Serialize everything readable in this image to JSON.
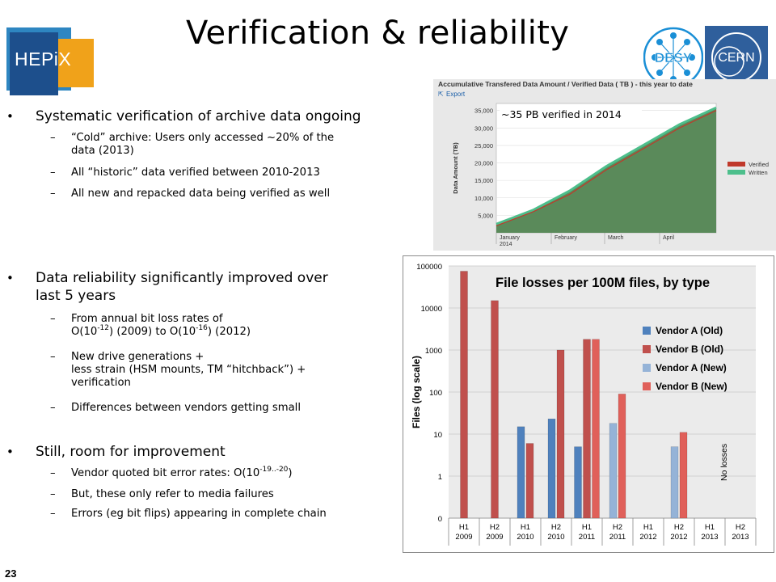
{
  "slide": {
    "title": "Verification & reliability",
    "page_number": "23",
    "logos": {
      "hepix": "HEPiX",
      "desy": "DESY",
      "cern": "CERN"
    }
  },
  "bullets": [
    {
      "text": "Systematic verification of archive data ongoing",
      "subs": [
        "“Cold” archive: Users only accessed ~20% of the",
        "data (2013)",
        "All “historic” data verified between 2010-2013",
        "All new and repacked data being verified as well"
      ]
    },
    {
      "text_line1": "Data reliability significantly improved over",
      "text_line2": "last 5 years",
      "subs": {
        "a1": "From annual bit loss rates of",
        "a2_pre": "O(10",
        "a2_sup1": "-12",
        "a2_mid": ") (2009) to O(10",
        "a2_sup2": "-16",
        "a2_post": ") (2012)",
        "b1": "New drive generations +",
        "b2": "less strain (HSM mounts, TM “hitchback”) +",
        "b3": "verification",
        "c": "Differences between vendors getting small"
      }
    },
    {
      "text": "Still, room for improvement",
      "subs": {
        "a_pre": "Vendor quoted bit error rates: O(10",
        "a_sup": "-19..-20",
        "a_post": ")",
        "b": "But, these only refer to media failures",
        "c": "Errors (eg bit flips) appearing in complete chain"
      }
    }
  ],
  "chart_data": [
    {
      "type": "area",
      "title": "Accumulative Transfered Data Amount / Verified Data ( TB ) - this year to date",
      "export_label": "Export",
      "annotation": "~35 PB verified in 2014",
      "ylabel": "Data Amount (TB)",
      "ylim": [
        0,
        37000
      ],
      "yticks": [
        "5,000",
        "10,000",
        "15,000",
        "20,000",
        "25,000",
        "30,000",
        "35,000"
      ],
      "ytick_values": [
        5000,
        10000,
        15000,
        20000,
        25000,
        30000,
        35000
      ],
      "x_labels": [
        [
          "January",
          "2014"
        ],
        [
          "February"
        ],
        [
          "March"
        ],
        [
          "April"
        ]
      ],
      "series": [
        {
          "name": "Written",
          "color": "#4dbf8c",
          "values": [
            2500,
            6500,
            12000,
            19000,
            25000,
            31000,
            35800
          ]
        },
        {
          "name": "Verified",
          "color": "#c0392b",
          "values": [
            2000,
            6000,
            11000,
            18000,
            24000,
            30000,
            35000
          ]
        }
      ],
      "fill_color": "#5a8a5a"
    },
    {
      "type": "bar",
      "title": "File losses per 100M files, by type",
      "ylabel": "Files (log scale)",
      "yscale": "log",
      "yticks": [
        "100000",
        "10000",
        "1000",
        "100",
        "10",
        "1",
        "0"
      ],
      "categories": [
        [
          "H1",
          "2009"
        ],
        [
          "H2",
          "2009"
        ],
        [
          "H1",
          "2010"
        ],
        [
          "H2",
          "2010"
        ],
        [
          "H1",
          "2011"
        ],
        [
          "H2",
          "2011"
        ],
        [
          "H1",
          "2012"
        ],
        [
          "H2",
          "2012"
        ],
        [
          "H1",
          "2013"
        ],
        [
          "H2",
          "2013"
        ]
      ],
      "annotation": "No losses",
      "series": [
        {
          "name": "Vendor A (Old)",
          "color": "#4f81bd",
          "values": [
            null,
            null,
            15,
            23,
            5,
            null,
            null,
            null,
            null,
            null
          ]
        },
        {
          "name": "Vendor B (Old)",
          "color": "#c0504d",
          "values": [
            75000,
            15000,
            6,
            1000,
            1800,
            null,
            null,
            null,
            null,
            null
          ]
        },
        {
          "name": "Vendor A (New)",
          "color": "#95b3d7",
          "values": [
            null,
            null,
            null,
            null,
            null,
            18,
            null,
            5,
            null,
            null
          ]
        },
        {
          "name": "Vendor B (New)",
          "color": "#e0605a",
          "values": [
            null,
            null,
            null,
            null,
            1800,
            90,
            null,
            11,
            null,
            null
          ]
        }
      ]
    }
  ]
}
